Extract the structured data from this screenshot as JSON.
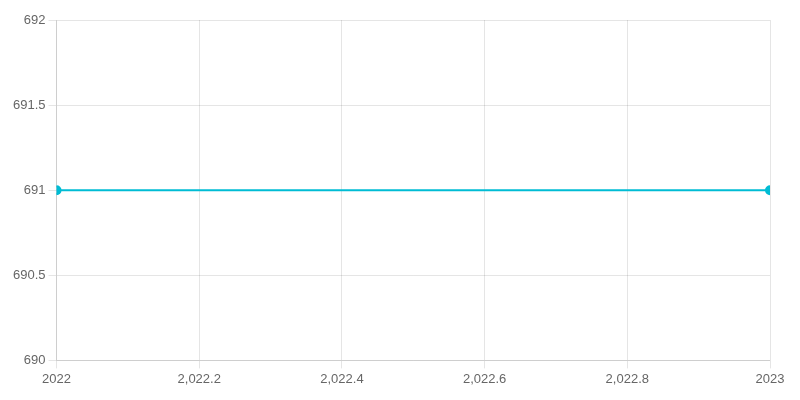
{
  "chart_data": {
    "type": "line",
    "x": [
      2022,
      2023
    ],
    "values": [
      691,
      691
    ],
    "color": "#00bcd4",
    "marker": "circle",
    "xlim": [
      2022,
      2023
    ],
    "ylim": [
      690,
      692
    ],
    "xticks": [
      2022,
      {
        "value": 2022.2,
        "label": "2,022.2"
      },
      {
        "value": 2022.4,
        "label": "2,022.4"
      },
      {
        "value": 2022.6,
        "label": "2,022.6"
      },
      {
        "value": 2022.8,
        "label": "2,022.8"
      },
      2023
    ],
    "yticks": [
      690,
      690.5,
      691,
      691.5,
      692
    ],
    "grid": true
  }
}
